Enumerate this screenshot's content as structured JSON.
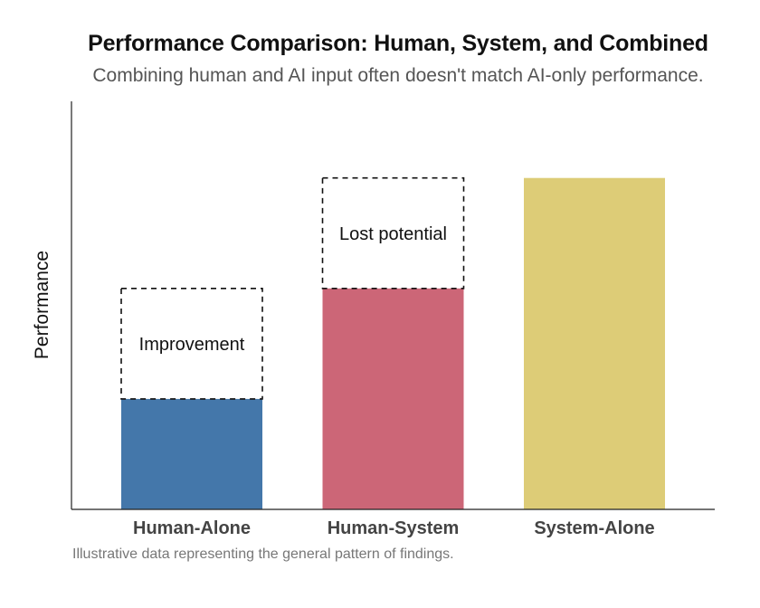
{
  "chart_data": {
    "type": "bar",
    "title": "Performance Comparison: Human, System, and Combined",
    "subtitle": "Combining human and AI input often doesn't match AI-only performance.",
    "ylabel": "Performance",
    "xlabel": "",
    "ylim": [
      0,
      100
    ],
    "y_ticks_shown": false,
    "grid": false,
    "categories": [
      "Human-Alone",
      "Human-System",
      "System-Alone"
    ],
    "values": [
      30,
      60,
      90
    ],
    "colors": [
      "#4477aa",
      "#cc6677",
      "#ddcc77"
    ],
    "annotations": [
      {
        "category": "Human-Alone",
        "label": "Improvement",
        "from": 30,
        "to": 60,
        "style": "dashed-box"
      },
      {
        "category": "Human-System",
        "label": "Lost potential",
        "from": 60,
        "to": 90,
        "style": "dashed-box"
      }
    ],
    "footnote": "Illustrative data representing the general pattern of findings."
  }
}
